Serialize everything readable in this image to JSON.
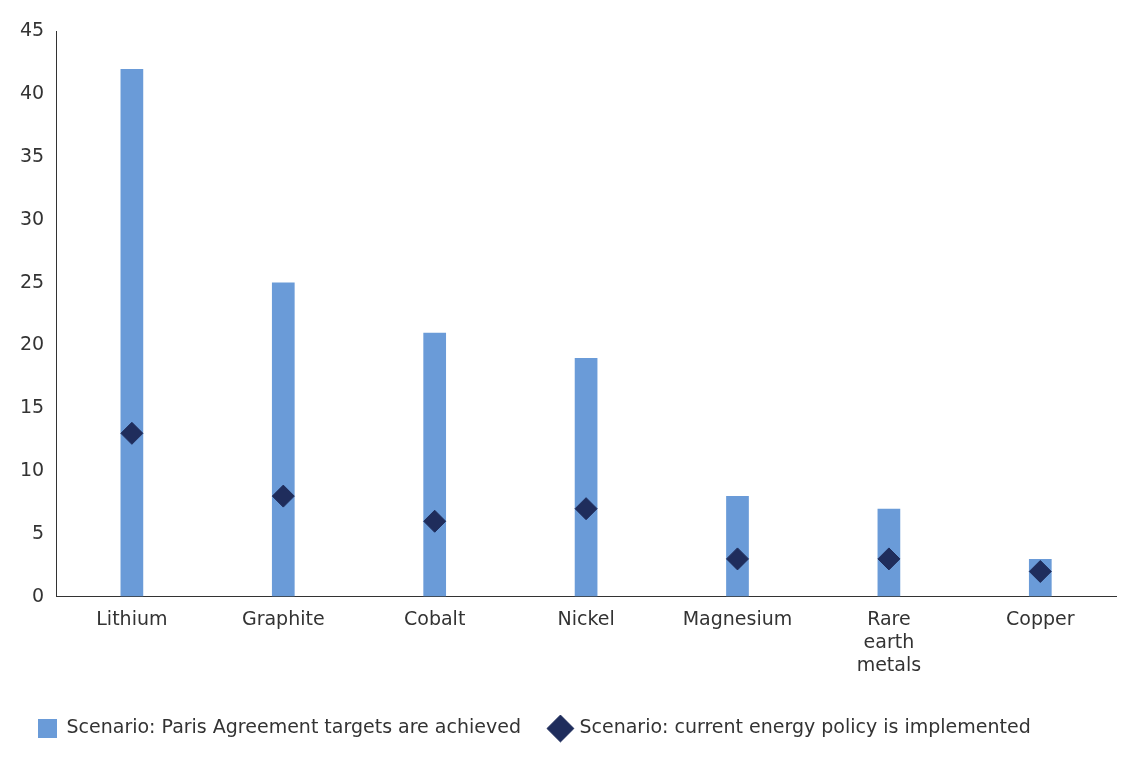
{
  "chart_data": {
    "type": "bar",
    "categories": [
      "Lithium",
      "Graphite",
      "Cobalt",
      "Nickel",
      "Magnesium",
      "Rare earth metals",
      "Copper"
    ],
    "series": [
      {
        "name": "Scenario: Paris Agreement targets are achieved",
        "color": "#6a9bd8",
        "values": [
          42,
          25,
          21,
          19,
          8,
          7,
          3
        ]
      },
      {
        "name": "Scenario: current energy policy is implemented",
        "type": "scatter",
        "color": "#1f2d5c",
        "values": [
          13,
          8,
          6,
          7,
          3,
          3,
          2
        ]
      }
    ],
    "marker": "diamond",
    "ylim": [
      0,
      45
    ],
    "yticks": [
      0,
      5,
      10,
      15,
      20,
      25,
      30,
      35,
      40,
      45
    ],
    "grid": false,
    "legend": "bottom left"
  }
}
